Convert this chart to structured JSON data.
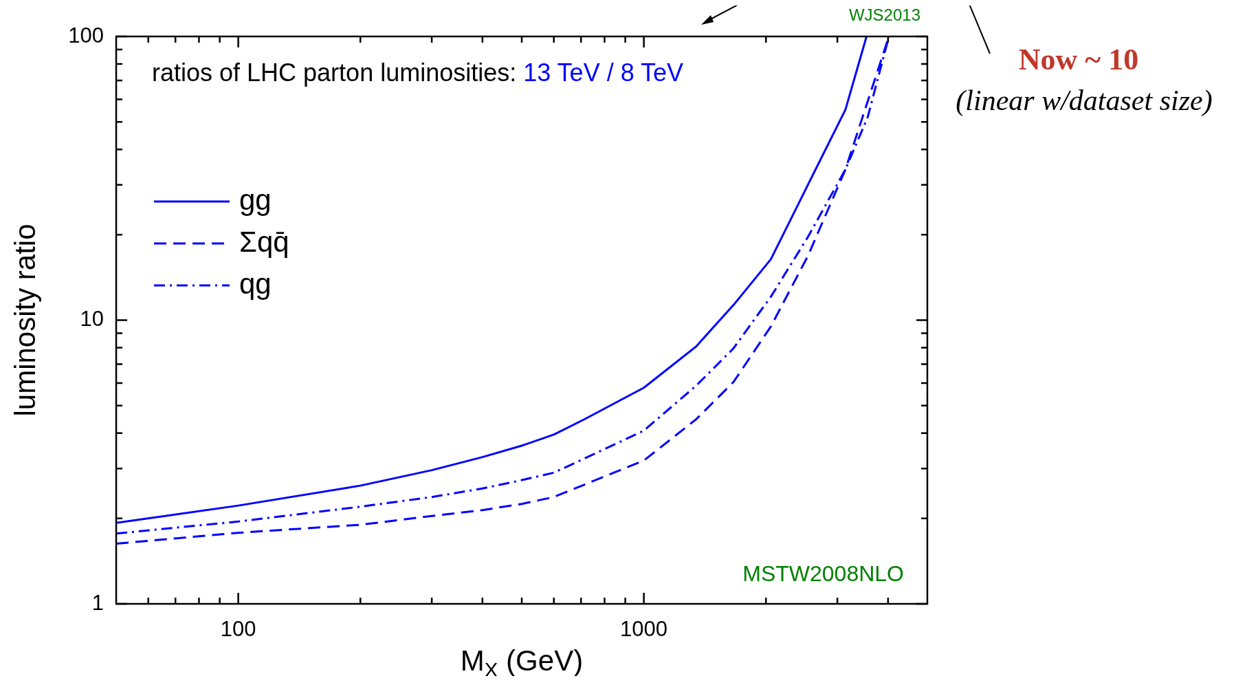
{
  "chart_data": {
    "type": "line",
    "title": "ratios of LHC parton luminosities:",
    "subtitle": "13 TeV / 8 TeV",
    "xlabel": "M$_{X}$ (GeV)",
    "ylabel": "luminosity ratio",
    "log": "xy",
    "legend": "top left",
    "xlim": [
      50,
      5000
    ],
    "ylim": [
      1,
      100
    ],
    "xticks": [
      {
        "value": 60,
        "label": null
      },
      {
        "value": 70,
        "label": null
      },
      {
        "value": 80,
        "label": null
      },
      {
        "value": 90,
        "label": null
      },
      100,
      {
        "value": 200,
        "label": null
      },
      {
        "value": 300,
        "label": null
      },
      {
        "value": 400,
        "label": null
      },
      {
        "value": 500,
        "label": null
      },
      {
        "value": 600,
        "label": null
      },
      {
        "value": 700,
        "label": null
      },
      {
        "value": 800,
        "label": null
      },
      {
        "value": 900,
        "label": null
      },
      1000,
      {
        "value": 2000,
        "label": null
      },
      {
        "value": 3000,
        "label": null
      },
      {
        "value": 4000,
        "label": null
      }
    ],
    "yticks": [
      1,
      {
        "value": 2,
        "label": null
      },
      {
        "value": 3,
        "label": null
      },
      {
        "value": 4,
        "label": null
      },
      {
        "value": 5,
        "label": null
      },
      {
        "value": 6,
        "label": null
      },
      {
        "value": 7,
        "label": null
      },
      {
        "value": 8,
        "label": null
      },
      {
        "value": 9,
        "label": null
      },
      10,
      {
        "value": 20,
        "label": null
      },
      {
        "value": 30,
        "label": null
      },
      {
        "value": 40,
        "label": null
      },
      {
        "value": 50,
        "label": null
      },
      {
        "value": 60,
        "label": null
      },
      {
        "value": 70,
        "label": null
      },
      {
        "value": 80,
        "label": null
      },
      {
        "value": 90,
        "label": null
      },
      100
    ],
    "series": [
      {
        "name": "gg",
        "color": "#0000ff",
        "line_style": "solid",
        "x": [
          50,
          100,
          200,
          300,
          400,
          500,
          600,
          713,
          1000,
          1345,
          1663,
          2057,
          2541,
          3141,
          3540
        ],
        "values": [
          1.93,
          2.22,
          2.61,
          2.96,
          3.29,
          3.61,
          3.95,
          4.47,
          5.78,
          8.07,
          11.3,
          16.4,
          30.1,
          55.2,
          100
        ]
      },
      {
        "name": "Σqq̄",
        "color": "#0000ff",
        "line_style": "dashed",
        "x": [
          50,
          100,
          200,
          300,
          400,
          500,
          600,
          713,
          1000,
          1345,
          1663,
          2057,
          2541,
          3141,
          4020
        ],
        "values": [
          1.63,
          1.78,
          1.9,
          2.04,
          2.14,
          2.25,
          2.38,
          2.63,
          3.2,
          4.47,
          6.05,
          9.5,
          16.9,
          34,
          100
        ]
      },
      {
        "name": "qg",
        "color": "#0000ff",
        "line_style": "dashdot",
        "x": [
          50,
          100,
          200,
          300,
          400,
          500,
          600,
          713,
          1000,
          1345,
          1663,
          2057,
          2541,
          3141,
          3565,
          4020
        ],
        "values": [
          1.77,
          1.95,
          2.2,
          2.38,
          2.55,
          2.73,
          2.9,
          3.25,
          4.08,
          5.87,
          7.95,
          12.1,
          19.7,
          34,
          52,
          100
        ]
      }
    ],
    "annotations": [
      "WJS2013",
      "Now ~ 10",
      "(linear w/dataset size)",
      "MSTW2008NLO"
    ]
  }
}
